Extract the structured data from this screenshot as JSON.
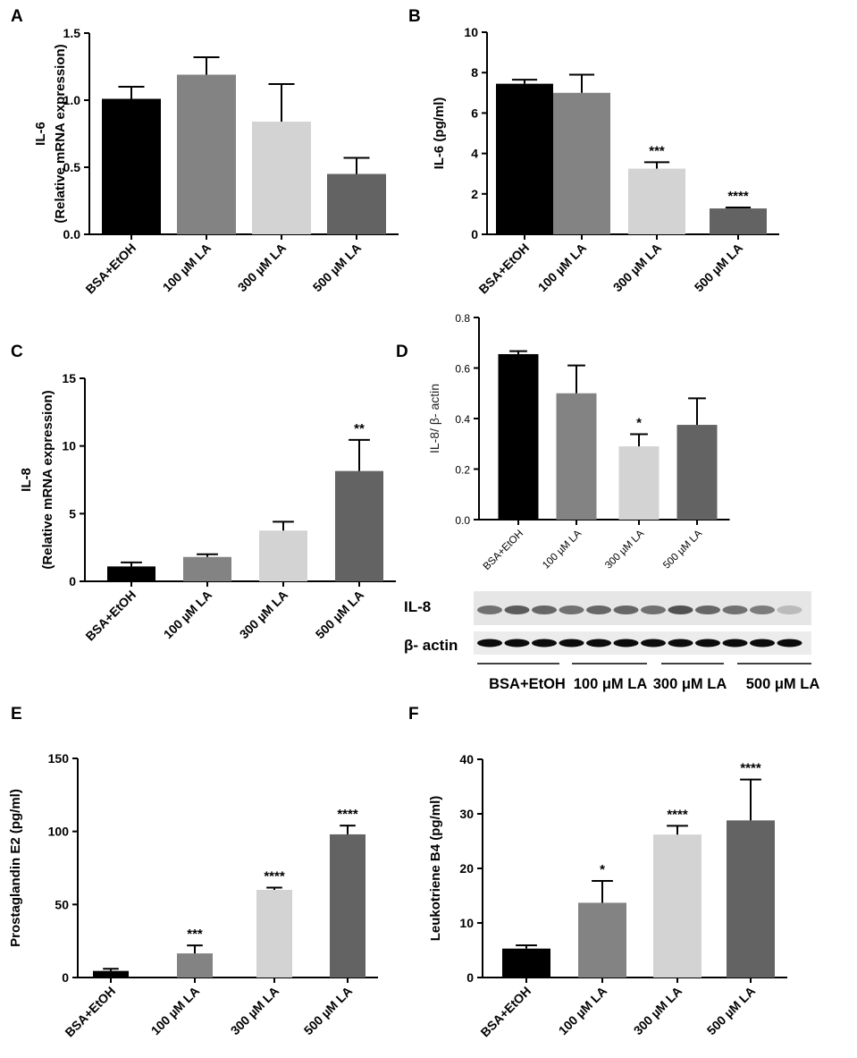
{
  "panels": {
    "A": "A",
    "B": "B",
    "C": "C",
    "D": "D",
    "E": "E",
    "F": "F"
  },
  "colors": {
    "BSA+EtOH": "#000000",
    "100 µM LA": "#838383",
    "300 µM LA": "#d3d3d3",
    "500 µM LA": "#636363"
  },
  "chart_data": [
    {
      "panel": "A",
      "type": "bar",
      "categories": [
        "BSA+EtOH",
        "100 µM LA",
        "300 µM LA",
        "500 µM LA"
      ],
      "values": [
        1.01,
        1.19,
        0.84,
        0.45
      ],
      "errors": [
        0.09,
        0.13,
        0.28,
        0.12
      ],
      "significance": [
        "",
        "",
        "",
        ""
      ],
      "ylabel": [
        "IL-6",
        "(Relative mRNA expression)"
      ],
      "ylim": [
        0,
        1.5
      ],
      "yticks": [
        "0.0",
        "0.5",
        "1.0",
        "1.5"
      ],
      "ytick_values": [
        0,
        0.5,
        1.0,
        1.5
      ]
    },
    {
      "panel": "B",
      "type": "bar",
      "categories": [
        "BSA+EtOH",
        "100 µM LA",
        "300 µM LA",
        "500 µM LA"
      ],
      "values": [
        7.45,
        7.0,
        3.25,
        1.28
      ],
      "errors": [
        0.2,
        0.9,
        0.32,
        0.05
      ],
      "significance": [
        "",
        "",
        "***",
        "****"
      ],
      "ylabel": [
        "IL-6 (pg/ml)"
      ],
      "ylim": [
        0,
        10
      ],
      "yticks": [
        "0",
        "2",
        "4",
        "6",
        "8",
        "10"
      ],
      "ytick_values": [
        0,
        2,
        4,
        6,
        8,
        10
      ]
    },
    {
      "panel": "C",
      "type": "bar",
      "categories": [
        "BSA+EtOH",
        "100 µM LA",
        "300 µM LA",
        "500 µM LA"
      ],
      "values": [
        1.1,
        1.8,
        3.75,
        8.15
      ],
      "errors": [
        0.3,
        0.2,
        0.65,
        2.3
      ],
      "significance": [
        "",
        "",
        "",
        "**"
      ],
      "ylabel": [
        "IL-8",
        "(Relative mRNA expression)"
      ],
      "ylim": [
        0,
        15
      ],
      "yticks": [
        "0",
        "5",
        "10",
        "15"
      ],
      "ytick_values": [
        0,
        5,
        10,
        15
      ]
    },
    {
      "panel": "D",
      "type": "bar",
      "categories": [
        "BSA+EtOH",
        "100 µM LA",
        "300 µM LA",
        "500 µM LA"
      ],
      "values": [
        0.655,
        0.5,
        0.29,
        0.375
      ],
      "errors": [
        0.012,
        0.11,
        0.048,
        0.105
      ],
      "significance": [
        "",
        "",
        "*",
        ""
      ],
      "ylabel": [
        "IL-8/ β- actin"
      ],
      "ylim": [
        0,
        0.8
      ],
      "yticks": [
        "0.0",
        "0.2",
        "0.4",
        "0.6",
        "0.8"
      ],
      "ytick_values": [
        0,
        0.2,
        0.4,
        0.6,
        0.8
      ]
    },
    {
      "panel": "E",
      "type": "bar",
      "categories": [
        "BSA+EtOH",
        "100 µM LA",
        "300 µM LA",
        "500 µM LA"
      ],
      "values": [
        4.5,
        16.5,
        60.0,
        98.0
      ],
      "errors": [
        1.5,
        5.5,
        1.5,
        6.0
      ],
      "significance": [
        "",
        "***",
        "****",
        "****"
      ],
      "ylabel": [
        "Prostaglandin E2 (pg/ml)"
      ],
      "ylim": [
        0,
        150
      ],
      "yticks": [
        "0",
        "50",
        "100",
        "150"
      ],
      "ytick_values": [
        0,
        50,
        100,
        150
      ]
    },
    {
      "panel": "F",
      "type": "bar",
      "categories": [
        "BSA+EtOH",
        "100 µM LA",
        "300 µM LA",
        "500 µM LA"
      ],
      "values": [
        5.3,
        13.7,
        26.2,
        28.8
      ],
      "errors": [
        0.6,
        4.0,
        1.6,
        7.5
      ],
      "significance": [
        "",
        "*",
        "****",
        "****"
      ],
      "ylabel": [
        "Leukotriene B4 (pg/ml)"
      ],
      "ylim": [
        0,
        40
      ],
      "yticks": [
        "0",
        "10",
        "20",
        "30",
        "40"
      ],
      "ytick_values": [
        0,
        10,
        20,
        30,
        40
      ]
    }
  ],
  "blot": {
    "rows": [
      "IL-8",
      "β- actin"
    ],
    "groups": [
      "BSA+EtOH",
      "100 μM LA",
      "300 μM LA",
      "500 μM LA"
    ]
  }
}
